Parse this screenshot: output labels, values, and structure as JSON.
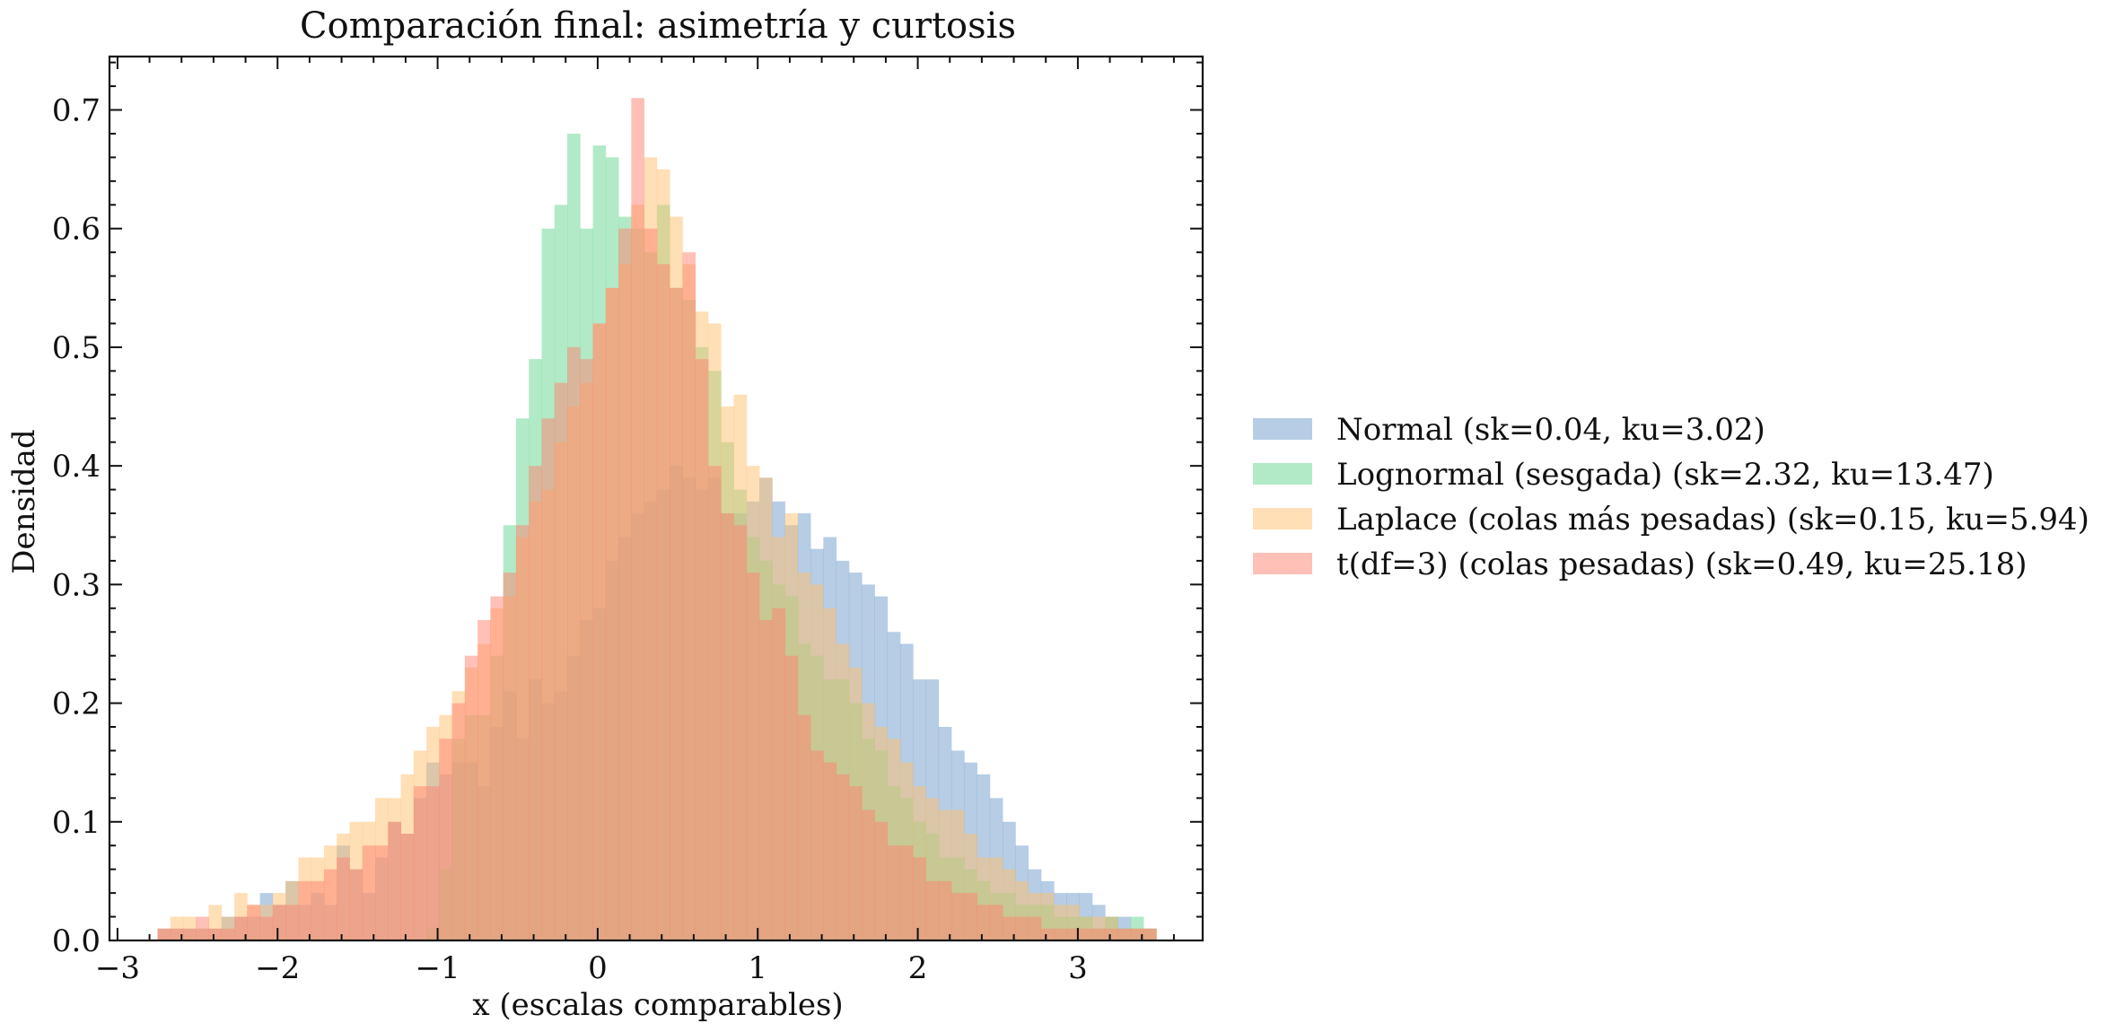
{
  "chart_data": {
    "type": "histogram",
    "title": "Comparación final: asimetría y curtosis",
    "xlabel": "x (escalas comparables)",
    "ylabel": "Densidad",
    "xlim": [
      -3.05,
      3.78
    ],
    "ylim": [
      0,
      0.745
    ],
    "xticks": [
      -3,
      -2,
      -1,
      0,
      1,
      2,
      3
    ],
    "xtick_labels": [
      "−3",
      "−2",
      "−1",
      "0",
      "1",
      "2",
      "3"
    ],
    "yticks": [
      0.0,
      0.1,
      0.2,
      0.3,
      0.4,
      0.5,
      0.6,
      0.7
    ],
    "ytick_labels": [
      "0.0",
      "0.1",
      "0.2",
      "0.3",
      "0.4",
      "0.5",
      "0.6",
      "0.7"
    ],
    "grid": false,
    "ticks_direction": "in",
    "minor_ticks": true,
    "legend_position": "outside-right-center",
    "bins": {
      "start": -2.75,
      "width": 0.08,
      "count": 78
    },
    "opacity": 0.5,
    "series": [
      {
        "name": "Normal  (sk=0.04, ku=3.02)",
        "color": "#6e9ccb",
        "values": [
          0.01,
          0.01,
          0.01,
          0.01,
          0.01,
          0.02,
          0.02,
          0.02,
          0.04,
          0.03,
          0.05,
          0.03,
          0.04,
          0.03,
          0.08,
          0.06,
          0.04,
          0.07,
          0.1,
          0.09,
          0.12,
          0.15,
          0.14,
          0.15,
          0.15,
          0.13,
          0.18,
          0.21,
          0.17,
          0.22,
          0.2,
          0.21,
          0.24,
          0.27,
          0.28,
          0.32,
          0.34,
          0.36,
          0.37,
          0.38,
          0.4,
          0.39,
          0.38,
          0.39,
          0.36,
          0.36,
          0.37,
          0.39,
          0.37,
          0.35,
          0.36,
          0.33,
          0.34,
          0.32,
          0.31,
          0.3,
          0.29,
          0.26,
          0.25,
          0.22,
          0.22,
          0.18,
          0.16,
          0.15,
          0.14,
          0.12,
          0.1,
          0.08,
          0.06,
          0.05,
          0.04,
          0.04,
          0.04,
          0.03,
          0.02,
          0.02,
          0.01,
          0.01
        ]
      },
      {
        "name": "Lognormal (sesgada)  (sk=2.32, ku=13.47)",
        "color": "#66d68f",
        "values": [
          0,
          0,
          0,
          0,
          0,
          0,
          0,
          0,
          0,
          0,
          0,
          0,
          0,
          0,
          0,
          0,
          0,
          0,
          0,
          0,
          0,
          0.01,
          0.06,
          0.17,
          0.19,
          0.19,
          0.24,
          0.35,
          0.44,
          0.49,
          0.6,
          0.62,
          0.68,
          0.6,
          0.67,
          0.66,
          0.61,
          0.6,
          0.58,
          0.62,
          0.55,
          0.54,
          0.5,
          0.48,
          0.42,
          0.38,
          0.34,
          0.32,
          0.3,
          0.29,
          0.25,
          0.24,
          0.22,
          0.22,
          0.2,
          0.17,
          0.16,
          0.13,
          0.12,
          0.1,
          0.09,
          0.07,
          0.07,
          0.06,
          0.05,
          0.04,
          0.04,
          0.03,
          0.03,
          0.03,
          0.02,
          0.02,
          0.02,
          0.01,
          0.02,
          0.01,
          0.02,
          0.01
        ]
      },
      {
        "name": "Laplace (colas más pesadas)  (sk=0.15, ku=5.94)",
        "color": "#ffc06d",
        "values": [
          0.01,
          0.02,
          0.02,
          0.01,
          0.03,
          0.02,
          0.04,
          0.03,
          0.03,
          0.04,
          0.05,
          0.07,
          0.07,
          0.08,
          0.09,
          0.1,
          0.1,
          0.12,
          0.12,
          0.14,
          0.16,
          0.18,
          0.19,
          0.21,
          0.23,
          0.25,
          0.28,
          0.29,
          0.34,
          0.37,
          0.38,
          0.42,
          0.45,
          0.47,
          0.52,
          0.55,
          0.57,
          0.62,
          0.66,
          0.65,
          0.61,
          0.57,
          0.53,
          0.52,
          0.45,
          0.46,
          0.4,
          0.39,
          0.34,
          0.36,
          0.31,
          0.3,
          0.28,
          0.25,
          0.23,
          0.2,
          0.18,
          0.17,
          0.15,
          0.13,
          0.12,
          0.11,
          0.11,
          0.09,
          0.07,
          0.07,
          0.06,
          0.05,
          0.04,
          0.04,
          0.03,
          0.03,
          0.02,
          0.02,
          0.02,
          0.01,
          0.01,
          0.01
        ]
      },
      {
        "name": "t(df=3) (colas pesadas)  (sk=0.49, ku=25.18)",
        "color": "#ff8270",
        "values": [
          0.01,
          0.01,
          0.01,
          0.02,
          0.01,
          0.01,
          0.02,
          0.03,
          0.02,
          0.03,
          0.03,
          0.05,
          0.05,
          0.06,
          0.07,
          0.06,
          0.08,
          0.08,
          0.1,
          0.09,
          0.13,
          0.13,
          0.17,
          0.2,
          0.24,
          0.27,
          0.29,
          0.31,
          0.35,
          0.4,
          0.44,
          0.47,
          0.5,
          0.49,
          0.52,
          0.55,
          0.6,
          0.71,
          0.6,
          0.57,
          0.55,
          0.58,
          0.49,
          0.4,
          0.36,
          0.35,
          0.31,
          0.27,
          0.28,
          0.24,
          0.19,
          0.16,
          0.15,
          0.14,
          0.13,
          0.11,
          0.1,
          0.08,
          0.08,
          0.07,
          0.05,
          0.05,
          0.04,
          0.04,
          0.03,
          0.03,
          0.02,
          0.02,
          0.02,
          0.01,
          0.01,
          0.01,
          0.01,
          0.01,
          0.01,
          0.01,
          0.01,
          0.01
        ]
      }
    ]
  }
}
